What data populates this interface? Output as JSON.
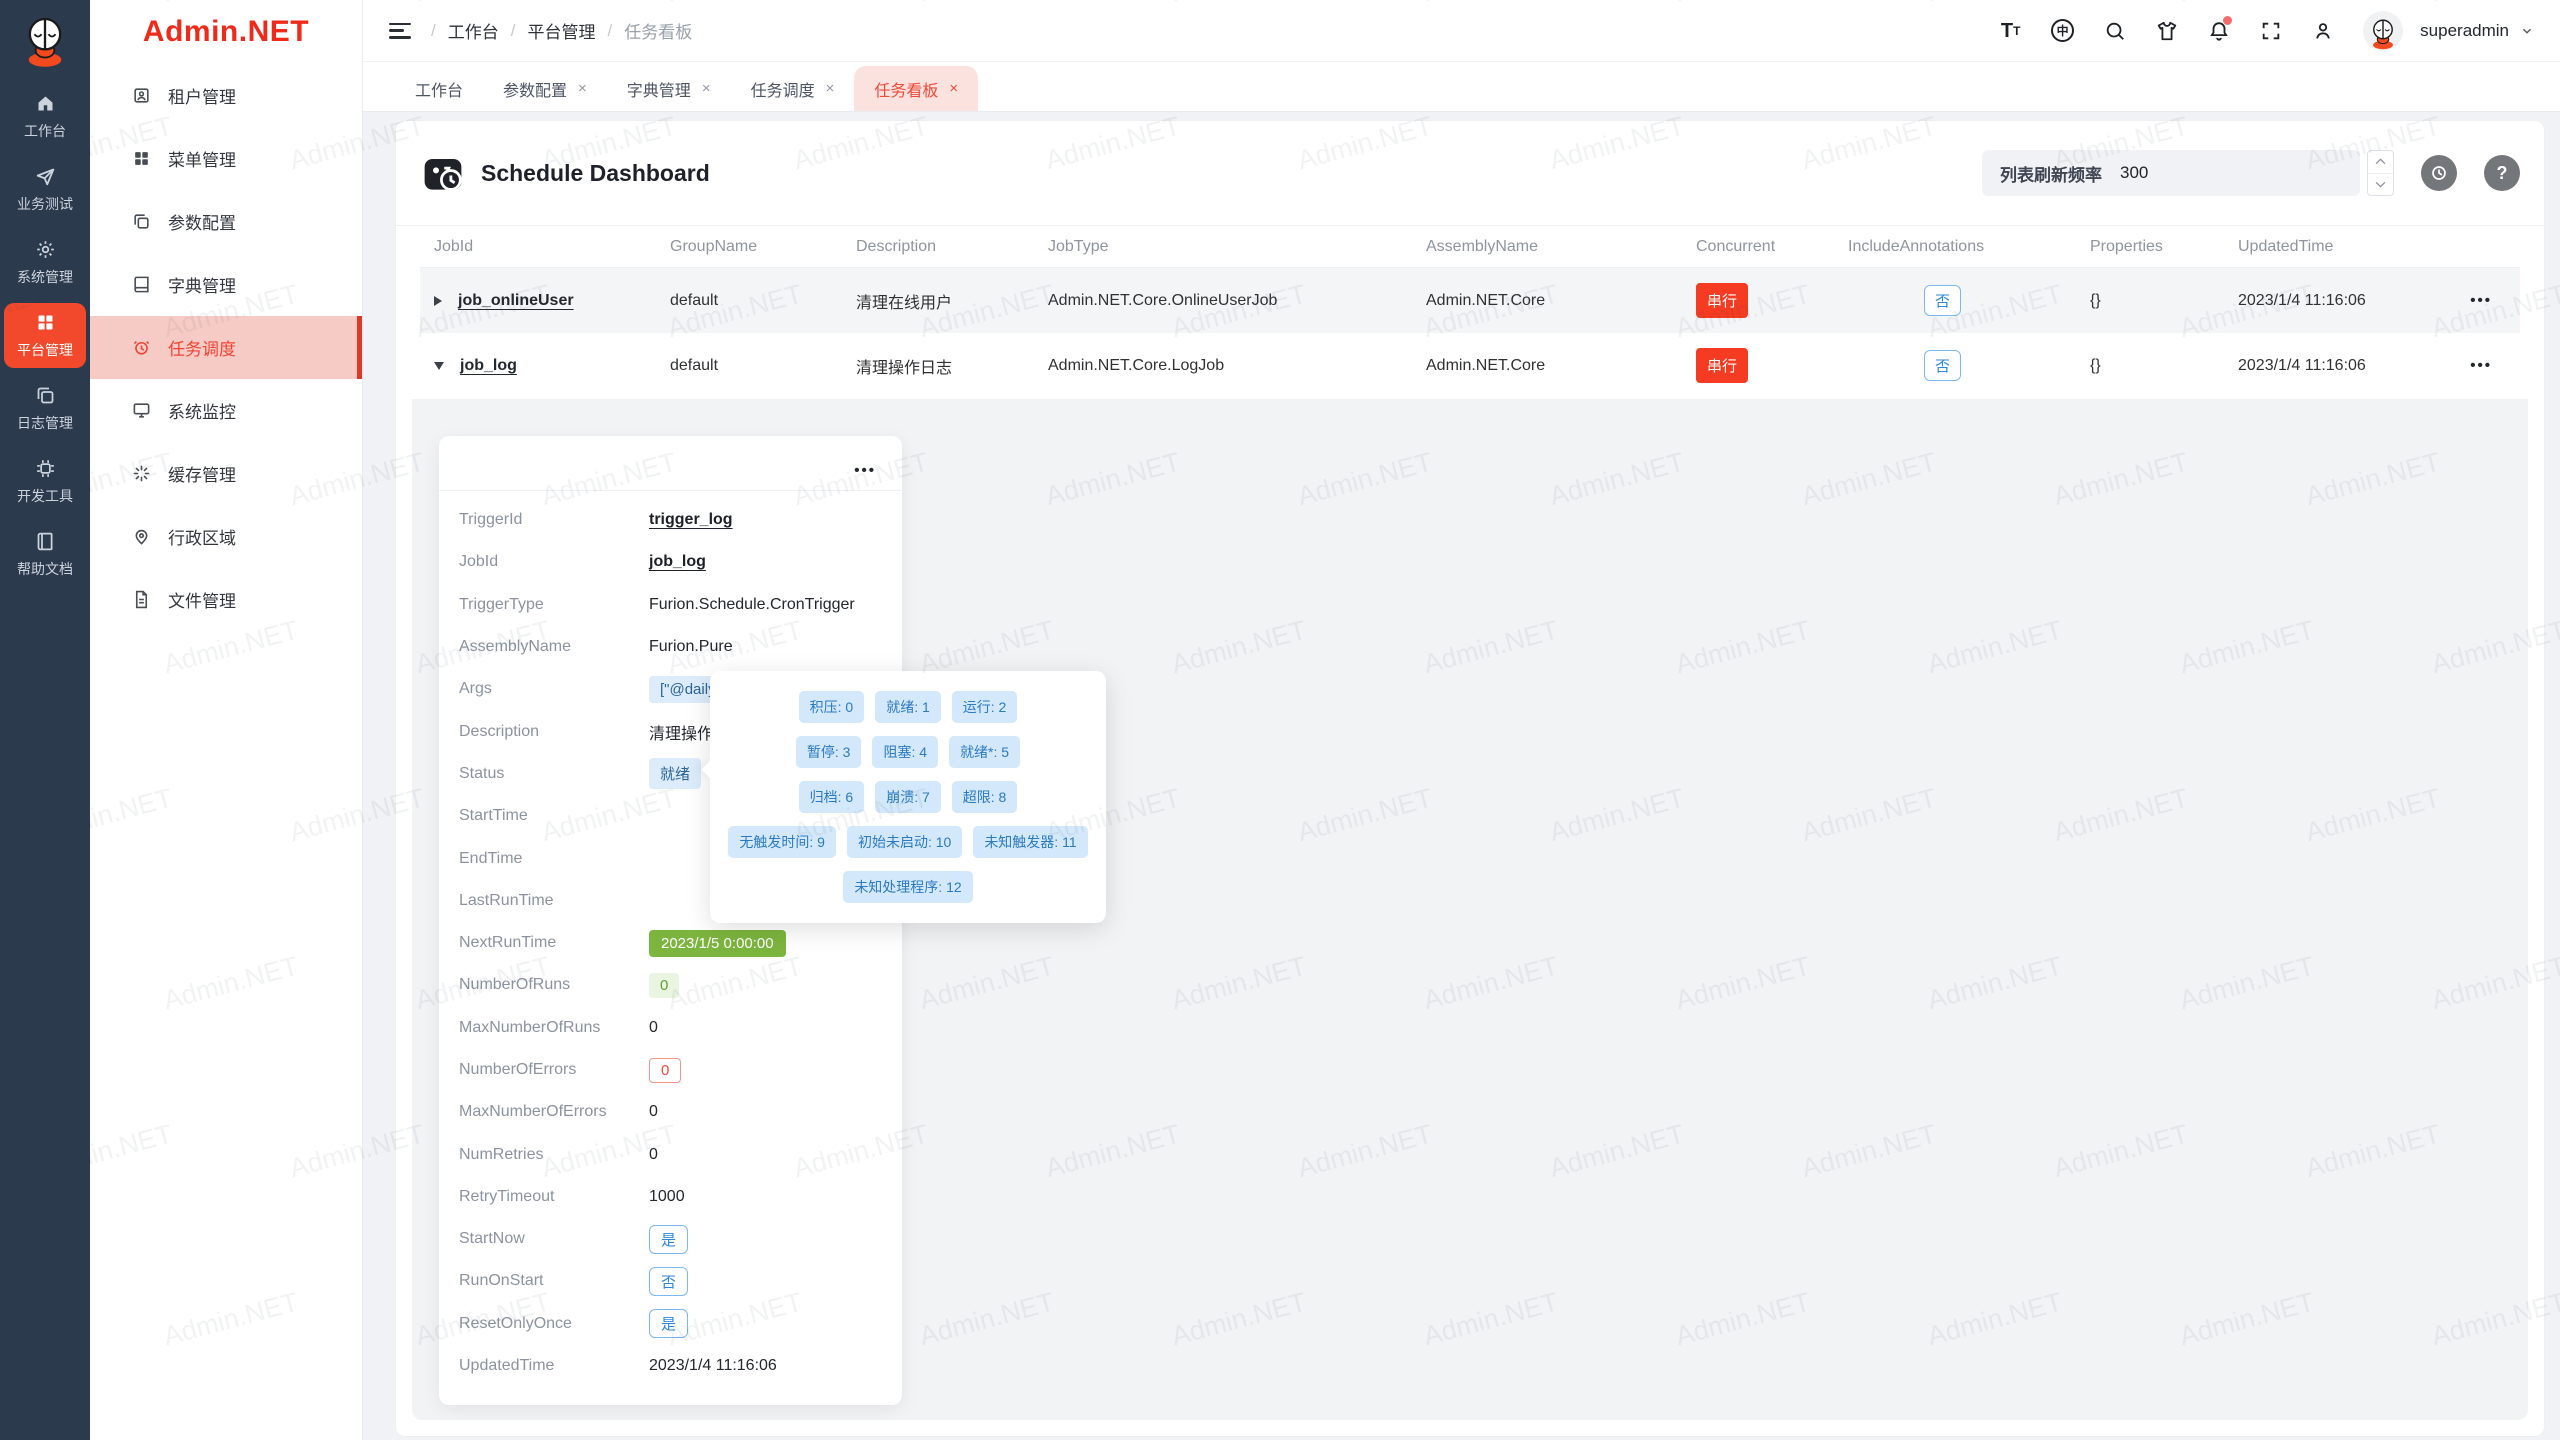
{
  "app": {
    "name": "Admin.NET",
    "watermark_text": "Admin.NET"
  },
  "glyphs": {
    "close": "×",
    "lang": "中",
    "font_big": "T",
    "font_small": "T",
    "more": "•••",
    "question": "?",
    "crumb_sep": "/"
  },
  "rail": {
    "items": [
      {
        "label": "工作台",
        "icon": "i-home",
        "icon_name": "home-icon",
        "active": false
      },
      {
        "label": "业务测试",
        "icon": "i-send",
        "icon_name": "send-icon",
        "active": false
      },
      {
        "label": "系统管理",
        "icon": "i-gear",
        "icon_name": "gear-icon",
        "active": false
      },
      {
        "label": "平台管理",
        "icon": "i-grid",
        "icon_name": "grid-icon",
        "active": true
      },
      {
        "label": "日志管理",
        "icon": "i-docs",
        "icon_name": "documents-icon",
        "active": false
      },
      {
        "label": "开发工具",
        "icon": "i-chip",
        "icon_name": "chip-icon",
        "active": false
      },
      {
        "label": "帮助文档",
        "icon": "i-book",
        "icon_name": "book-icon",
        "active": false
      }
    ]
  },
  "sidebar": {
    "logo_text": "Admin.NET",
    "items": [
      {
        "label": "租户管理",
        "icon": "i-tenant",
        "icon_name": "tenant-icon"
      },
      {
        "label": "菜单管理",
        "icon": "i-grid",
        "icon_name": "menu-grid-icon"
      },
      {
        "label": "参数配置",
        "icon": "i-docs",
        "icon_name": "copy-icon"
      },
      {
        "label": "字典管理",
        "icon": "i-dict",
        "icon_name": "dictionary-icon"
      },
      {
        "label": "任务调度",
        "icon": "i-alarm",
        "icon_name": "alarm-clock-icon",
        "active": true
      },
      {
        "label": "系统监控",
        "icon": "i-monitor",
        "icon_name": "monitor-icon"
      },
      {
        "label": "缓存管理",
        "icon": "i-spin",
        "icon_name": "spinner-icon"
      },
      {
        "label": "行政区域",
        "icon": "i-pin",
        "icon_name": "map-pin-icon"
      },
      {
        "label": "文件管理",
        "icon": "i-file",
        "icon_name": "file-icon"
      }
    ]
  },
  "header": {
    "breadcrumb": [
      {
        "label": "工作台",
        "crumbcls": ""
      },
      {
        "label": "平台管理",
        "crumbcls": ""
      },
      {
        "label": "任务看板",
        "crumbcls": "last"
      }
    ],
    "icons": [
      "font-size-icon",
      "language-icon",
      "search-icon",
      "theme-icon",
      "notification-icon",
      "fullscreen-icon",
      "user-icon"
    ],
    "username": "superadmin"
  },
  "tabs": [
    {
      "label": "工作台",
      "closable": false,
      "active": false
    },
    {
      "label": "参数配置",
      "closable": true,
      "active": false
    },
    {
      "label": "字典管理",
      "closable": true,
      "active": false
    },
    {
      "label": "任务调度",
      "closable": true,
      "active": false
    },
    {
      "label": "任务看板",
      "closable": true,
      "active": true
    }
  ],
  "toolbar": {
    "title": "Schedule Dashboard",
    "refresh_label": "列表刷新频率",
    "refresh_value": "300"
  },
  "table": {
    "headers": [
      "JobId",
      "GroupName",
      "Description",
      "JobType",
      "AssemblyName",
      "Concurrent",
      "IncludeAnnotations",
      "Properties",
      "UpdatedTime"
    ],
    "rows": [
      {
        "arrow": "right",
        "rowcls": "stripe",
        "jobId": "job_onlineUser",
        "group": "default",
        "desc": "清理在线用户",
        "jobType": "Admin.NET.Core.OnlineUserJob",
        "assembly": "Admin.NET.Core",
        "concurrent": "串行",
        "include": "否",
        "props": "{}",
        "updated": "2023/1/4 11:16:06",
        "more": "•••"
      },
      {
        "arrow": "down",
        "rowcls": "",
        "jobId": "job_log",
        "group": "default",
        "desc": "清理操作日志",
        "jobType": "Admin.NET.Core.LogJob",
        "assembly": "Admin.NET.Core",
        "concurrent": "串行",
        "include": "否",
        "props": "{}",
        "updated": "2023/1/4 11:16:06",
        "more": "•••"
      }
    ]
  },
  "detail": {
    "more": "•••",
    "rows": [
      {
        "label": "TriggerId",
        "value": "trigger_log",
        "type": "v-link"
      },
      {
        "label": "JobId",
        "value": "job_log",
        "type": "v-link"
      },
      {
        "label": "TriggerType",
        "value": "Furion.Schedule.CronTrigger",
        "type": "v-text"
      },
      {
        "label": "AssemblyName",
        "value": "Furion.Pure",
        "type": "v-text"
      },
      {
        "label": "Args",
        "value": "[\"@daily",
        "type": "v-tag-info"
      },
      {
        "label": "Description",
        "value": "清理操作",
        "type": "v-text"
      },
      {
        "label": "Status",
        "value": "就绪",
        "type": "v-tag-info"
      },
      {
        "label": "StartTime",
        "value": "",
        "type": "v-text"
      },
      {
        "label": "EndTime",
        "value": "",
        "type": "v-text"
      },
      {
        "label": "LastRunTime",
        "value": "",
        "type": "v-text"
      },
      {
        "label": "NextRunTime",
        "value": "2023/1/5 0:00:00",
        "type": "v-tag-green"
      },
      {
        "label": "NumberOfRuns",
        "value": "0",
        "type": "v-tag-lgreen"
      },
      {
        "label": "MaxNumberOfRuns",
        "value": "0",
        "type": "v-text"
      },
      {
        "label": "NumberOfErrors",
        "value": "0",
        "type": "v-tag-red-o"
      },
      {
        "label": "MaxNumberOfErrors",
        "value": "0",
        "type": "v-text"
      },
      {
        "label": "NumRetries",
        "value": "0",
        "type": "v-text"
      },
      {
        "label": "RetryTimeout",
        "value": "1000",
        "type": "v-text"
      },
      {
        "label": "StartNow",
        "value": "是",
        "type": "v-tag-blue-o"
      },
      {
        "label": "RunOnStart",
        "value": "否",
        "type": "v-tag-blue-o"
      },
      {
        "label": "ResetOnlyOnce",
        "value": "是",
        "type": "v-tag-blue-o"
      },
      {
        "label": "UpdatedTime",
        "value": "2023/1/4 11:16:06",
        "type": "v-text"
      }
    ]
  },
  "status_popover": {
    "rows": [
      [
        "积压: 0",
        "就绪: 1",
        "运行: 2"
      ],
      [
        "暂停: 3",
        "阻塞: 4",
        "就绪*: 5"
      ],
      [
        "归档: 6",
        "崩溃: 7",
        "超限: 8"
      ],
      [
        "无触发时间: 9",
        "初始未启动: 10",
        "未知触发器: 11"
      ],
      [
        "未知处理程序: 12"
      ]
    ]
  }
}
